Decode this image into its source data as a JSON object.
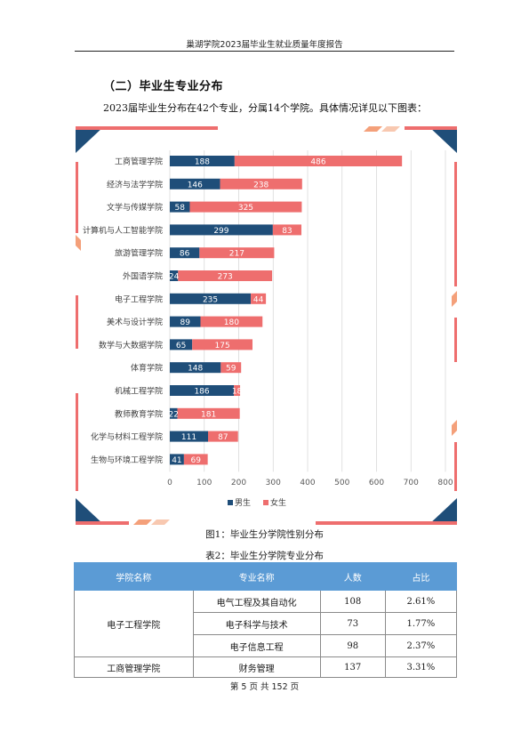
{
  "header": {
    "title": "巢湖学院2023届毕业生就业质量年度报告"
  },
  "section": {
    "heading": "（二）毕业生专业分布"
  },
  "intro": {
    "text": "2023届毕业生分布在42个专业，分属14个学院。具体情况详见以下图表："
  },
  "chart_data": {
    "type": "bar",
    "orientation": "horizontal",
    "stacked": true,
    "categories": [
      "工商管理学院",
      "经济与法学学院",
      "文学与传媒学院",
      "计算机与人工智能学院",
      "旅游管理学院",
      "外国语学院",
      "电子工程学院",
      "美术与设计学院",
      "数学与大数据学院",
      "体育学院",
      "机械工程学院",
      "教师教育学院",
      "化学与材料工程学院",
      "生物与环境工程学院"
    ],
    "series": [
      {
        "name": "男生",
        "color": "#1f4e79",
        "values": [
          188,
          146,
          58,
          299,
          86,
          24,
          235,
          89,
          65,
          148,
          186,
          22,
          111,
          41
        ]
      },
      {
        "name": "女生",
        "color": "#ee6e6e",
        "values": [
          486,
          238,
          325,
          83,
          217,
          273,
          44,
          180,
          175,
          59,
          18,
          181,
          87,
          69
        ]
      }
    ],
    "xlim": [
      0,
      800
    ],
    "xticks": [
      0,
      100,
      200,
      300,
      400,
      500,
      600,
      700,
      800
    ],
    "grid": true,
    "legend_position": "bottom"
  },
  "figure": {
    "caption": "图1：毕业生分学院性别分布"
  },
  "table": {
    "caption": "表2：毕业生分学院专业分布",
    "headers": [
      "学院名称",
      "专业名称",
      "人数",
      "占比"
    ],
    "groups": [
      {
        "college": "电子工程学院",
        "rows": [
          {
            "major": "电气工程及其自动化",
            "count": "108",
            "ratio": "2.61%"
          },
          {
            "major": "电子科学与技术",
            "count": "73",
            "ratio": "1.77%"
          },
          {
            "major": "电子信息工程",
            "count": "98",
            "ratio": "2.37%"
          }
        ]
      },
      {
        "college": "工商管理学院",
        "rows": [
          {
            "major": "财务管理",
            "count": "137",
            "ratio": "3.31%"
          }
        ]
      }
    ]
  },
  "footer": {
    "page_text": "第 5 页 共 152 页"
  },
  "colors": {
    "male": "#1f4e79",
    "female": "#ee6e6e",
    "table_header": "#5b9bd5",
    "corner_dark": "#1f4e79",
    "corner_accent": "#f4a07a"
  }
}
